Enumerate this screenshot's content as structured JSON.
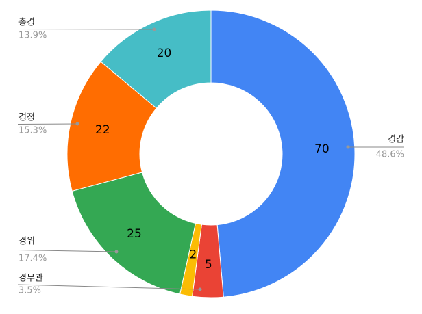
{
  "chart_data": {
    "type": "donut",
    "categories": [
      "경감",
      "경무관",
      null,
      "경위",
      "경정",
      "총경"
    ],
    "values": [
      70,
      5,
      2,
      25,
      22,
      20
    ],
    "percent_labels": [
      "48.6%",
      "3.5%",
      null,
      "17.4%",
      "15.3%",
      "13.9%"
    ],
    "colors": [
      "#4285f4",
      "#ea4335",
      "#fbbc04",
      "#34a853",
      "#ff6d01",
      "#46bdc6"
    ]
  }
}
